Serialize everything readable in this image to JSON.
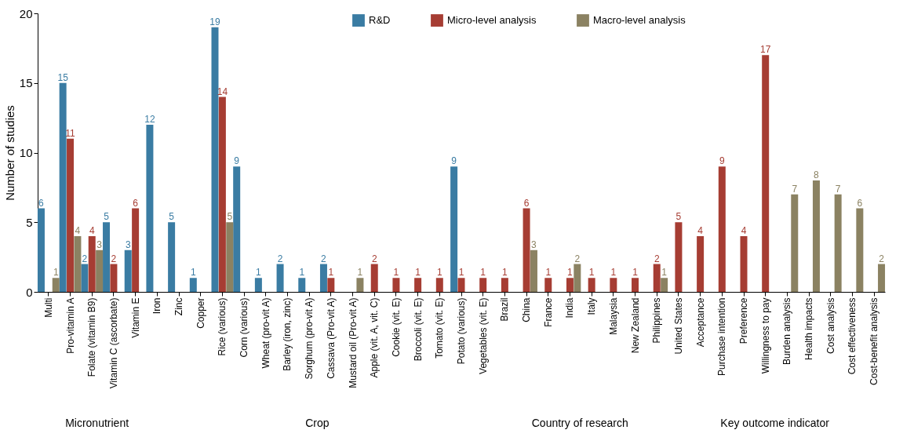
{
  "chart_data": {
    "type": "bar",
    "ylabel": "Number of studies",
    "ylim": [
      0,
      20
    ],
    "yticks": [
      0,
      5,
      10,
      15,
      20
    ],
    "grid": false,
    "legend": "top",
    "data_labels": true,
    "categories": [
      "Multi",
      "Pro-vitamin A",
      "Folate (vitamin B9)",
      "Vitamin C (ascorbate)",
      "Vitamin E",
      "Iron",
      "Zinc",
      "Copper",
      "Rice (various)",
      "Corn (various)",
      "Wheat (pro-vit A)",
      "Barley (iron, zinc)",
      "Sorghum (pro-vit A)",
      "Cassava (Pro-vit A)",
      "Mustard oil (Pro-vit A)",
      "Apple (vit. A, vit. C)",
      "Cookie (vit. E)",
      "Broccoli (vit. E)",
      "Tomato (vit. E)",
      "Potato (various)",
      "Vegetables (vit. E)",
      "Brazil",
      "China",
      "France",
      "India",
      "Italy",
      "Malaysia",
      "New Zealand",
      "Philippines",
      "United States",
      "Acceptance",
      "Purchase intention",
      "Preference",
      "Willingness to pay",
      "Burden analysis",
      "Health impacts",
      "Cost analysis",
      "Cost effectiveness",
      "Cost-benefit analysis"
    ],
    "series": [
      {
        "name": "R&D",
        "color": "#3a7ca3",
        "values": [
          6,
          15,
          2,
          5,
          3,
          12,
          5,
          1,
          19,
          9,
          1,
          2,
          1,
          2,
          null,
          null,
          null,
          null,
          null,
          9,
          null,
          null,
          null,
          null,
          null,
          null,
          null,
          null,
          null,
          null,
          null,
          null,
          null,
          null,
          null,
          null,
          null,
          null,
          null
        ]
      },
      {
        "name": "Micro-level analysis",
        "color": "#a63d33",
        "values": [
          null,
          11,
          4,
          2,
          6,
          null,
          null,
          null,
          14,
          null,
          null,
          null,
          null,
          1,
          null,
          2,
          1,
          1,
          1,
          1,
          1,
          1,
          6,
          1,
          1,
          1,
          1,
          1,
          2,
          5,
          4,
          9,
          4,
          17,
          null,
          null,
          null,
          null,
          null
        ]
      },
      {
        "name": "Macro-level analysis",
        "color": "#8b8262",
        "values": [
          1,
          4,
          3,
          null,
          null,
          null,
          null,
          null,
          5,
          null,
          null,
          null,
          null,
          null,
          1,
          null,
          null,
          null,
          null,
          null,
          null,
          null,
          3,
          null,
          2,
          null,
          null,
          null,
          1,
          null,
          null,
          null,
          null,
          null,
          7,
          8,
          7,
          6,
          2
        ]
      }
    ],
    "annotations": [
      "Micronutrient",
      "Crop",
      "Country of research",
      "Key outcome indicator"
    ]
  }
}
